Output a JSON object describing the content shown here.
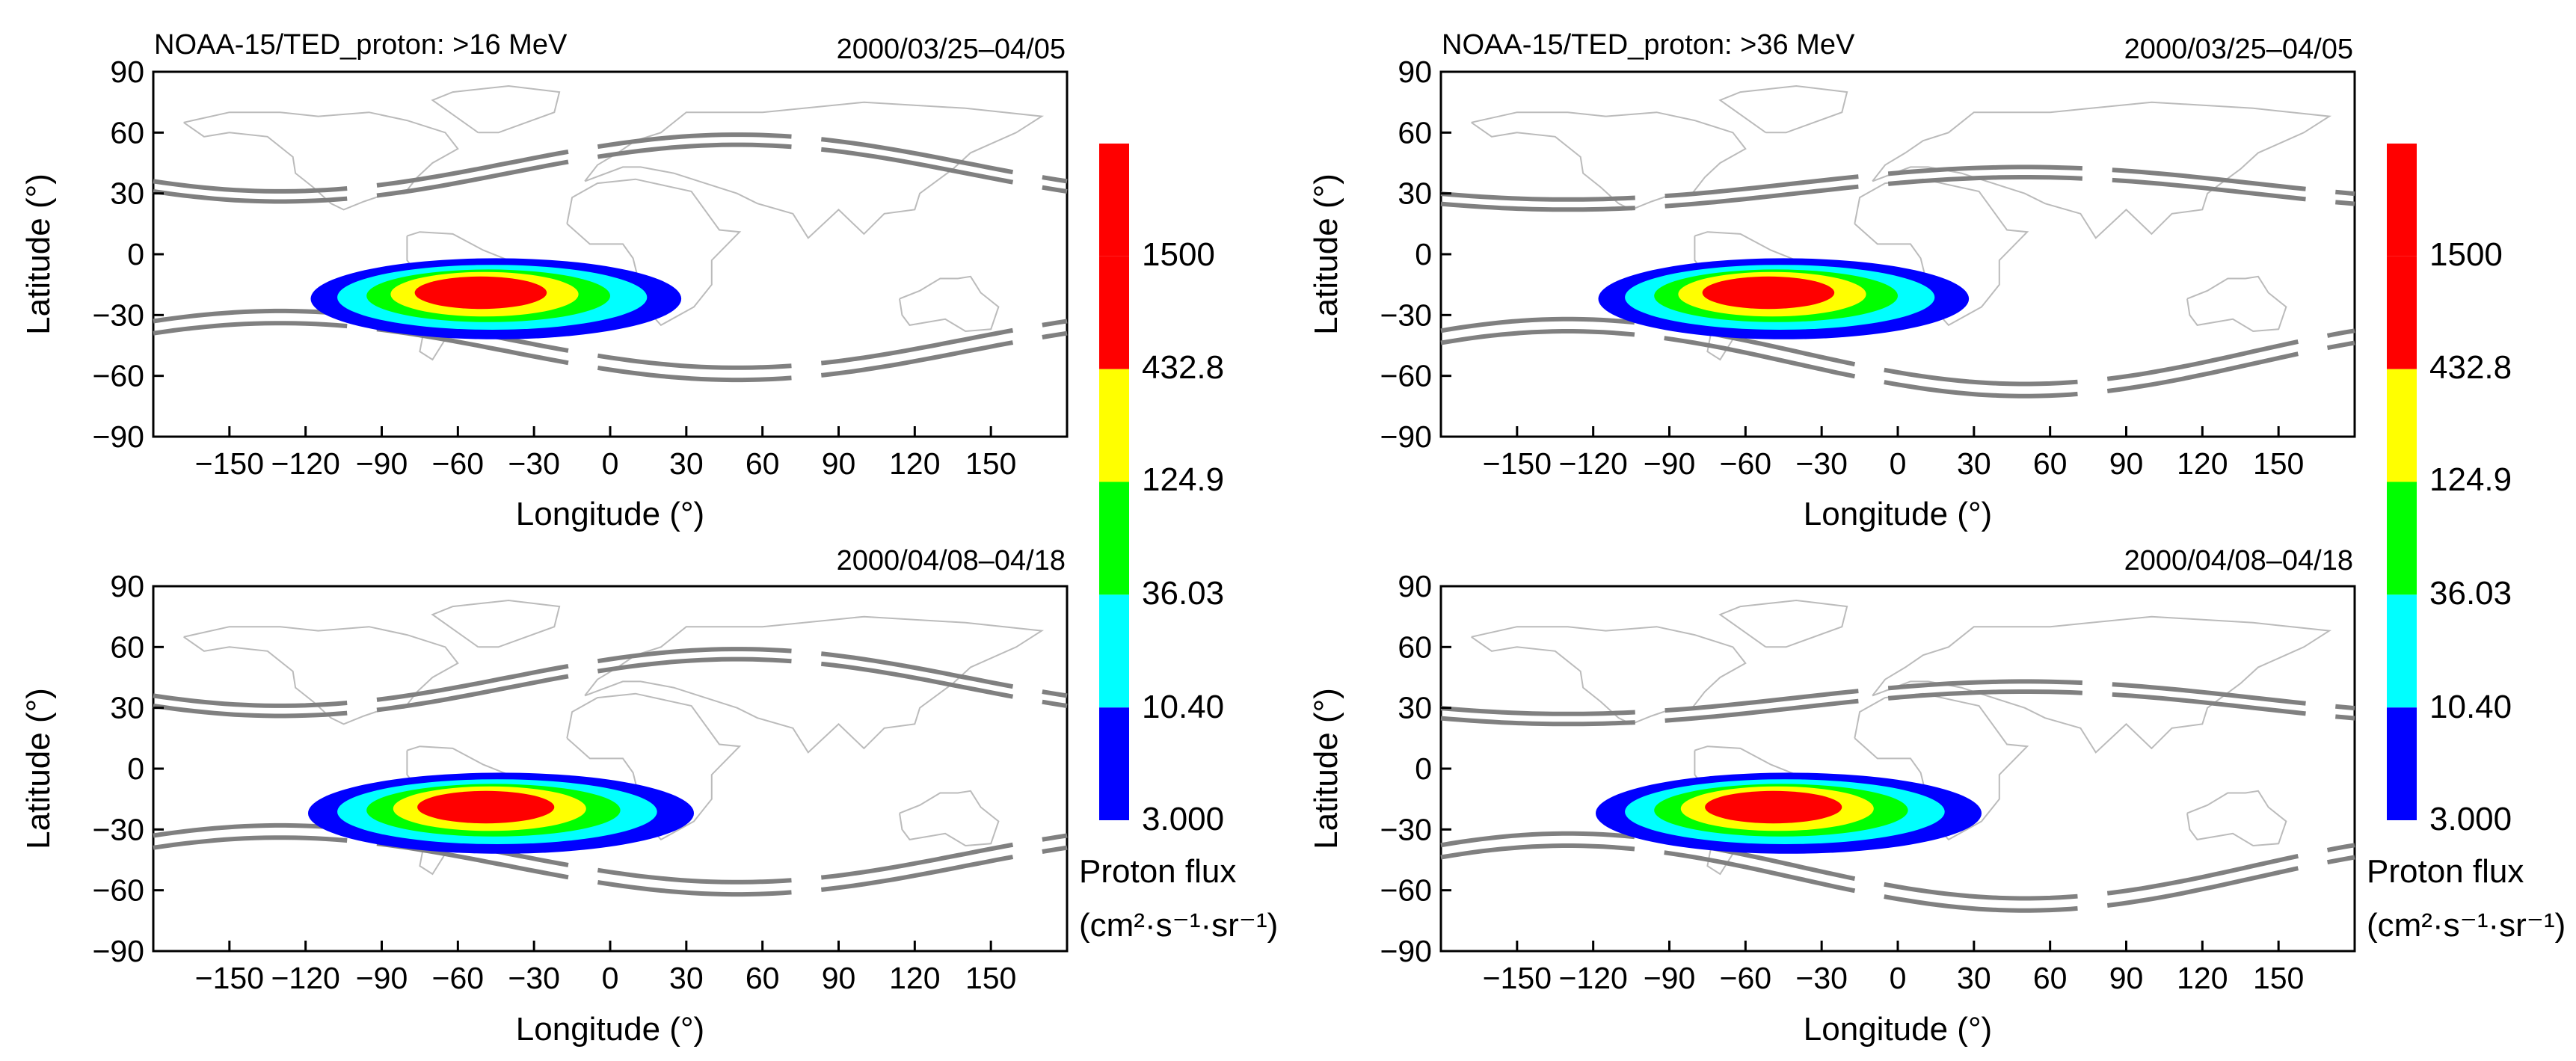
{
  "figure": {
    "cbar_title": "Proton flux",
    "cbar_unit": "(cm²·s⁻¹·sr⁻¹)"
  },
  "chart_data": [
    {
      "type": "heatmap",
      "title": "NOAA-15/TED_proton: >16 MeV",
      "date": "2000/03/25–04/05",
      "xlabel": "Longitude (°)",
      "ylabel": "Latitude (°)",
      "xlim": [
        -180,
        180
      ],
      "ylim": [
        -90,
        90
      ],
      "xticks": [
        "-150",
        "-120",
        "-90",
        "-60",
        "-30",
        "0",
        "30",
        "60",
        "90",
        "120",
        "150"
      ],
      "yticks": [
        "90",
        "60",
        "30",
        "0",
        "-30",
        "-60",
        "-90"
      ],
      "saa_center": [
        -45,
        -22
      ],
      "saa_level_radii": [
        [
          73,
          20
        ],
        [
          61,
          16
        ],
        [
          48,
          13
        ],
        [
          37,
          11
        ],
        [
          26,
          8
        ]
      ],
      "saa_level_offset": [
        6,
        3
      ]
    },
    {
      "type": "heatmap",
      "title": "NOAA-15/TED_proton: >36 MeV",
      "date": "2000/03/25–04/05",
      "xlabel": "Longitude (°)",
      "ylabel": "Latitude (°)",
      "xlim": [
        -180,
        180
      ],
      "ylim": [
        -90,
        90
      ],
      "xticks": [
        "-150",
        "-120",
        "-90",
        "-60",
        "-30",
        "0",
        "30",
        "60",
        "90",
        "120",
        "150"
      ],
      "yticks": [
        "90",
        "60",
        "30",
        "0",
        "-30",
        "-60",
        "-90"
      ],
      "saa_center": [
        -45,
        -22
      ],
      "saa_level_radii": [
        [
          73,
          20
        ],
        [
          61,
          16
        ],
        [
          48,
          13
        ],
        [
          37,
          11
        ],
        [
          26,
          8
        ]
      ],
      "saa_level_offset": [
        6,
        3
      ]
    },
    {
      "type": "heatmap",
      "title": "",
      "date": "2000/04/08–04/18",
      "xlabel": "Longitude (°)",
      "ylabel": "Latitude (°)",
      "xlim": [
        -180,
        180
      ],
      "ylim": [
        -90,
        90
      ],
      "xticks": [
        "-150",
        "-120",
        "-90",
        "-60",
        "-30",
        "0",
        "30",
        "60",
        "90",
        "120",
        "150"
      ],
      "yticks": [
        "90",
        "60",
        "30",
        "0",
        "-30",
        "-60",
        "-90"
      ],
      "saa_center": [
        -43,
        -22
      ],
      "saa_level_radii": [
        [
          76,
          20
        ],
        [
          63,
          16
        ],
        [
          50,
          13
        ],
        [
          38,
          11
        ],
        [
          27,
          8
        ]
      ],
      "saa_level_offset": [
        6,
        3
      ]
    },
    {
      "type": "heatmap",
      "title": "",
      "date": "2000/04/08–04/18",
      "xlabel": "Longitude (°)",
      "ylabel": "Latitude (°)",
      "xlim": [
        -180,
        180
      ],
      "ylim": [
        -90,
        90
      ],
      "xticks": [
        "-150",
        "-120",
        "-90",
        "-60",
        "-30",
        "0",
        "30",
        "60",
        "90",
        "120",
        "150"
      ],
      "yticks": [
        "90",
        "60",
        "30",
        "0",
        "-30",
        "-60",
        "-90"
      ],
      "saa_center": [
        -43,
        -22
      ],
      "saa_level_radii": [
        [
          76,
          20
        ],
        [
          63,
          16
        ],
        [
          50,
          13
        ],
        [
          38,
          11
        ],
        [
          27,
          8
        ]
      ],
      "saa_level_offset": [
        6,
        3
      ]
    }
  ],
  "colorbar": {
    "levels": [
      "3.000",
      "10.40",
      "36.03",
      "124.9",
      "432.8",
      "1500"
    ],
    "colors": [
      "#0000ff",
      "#00ffff",
      "#00ff00",
      "#ffff00",
      "#ff0000",
      "#ff0000"
    ]
  }
}
